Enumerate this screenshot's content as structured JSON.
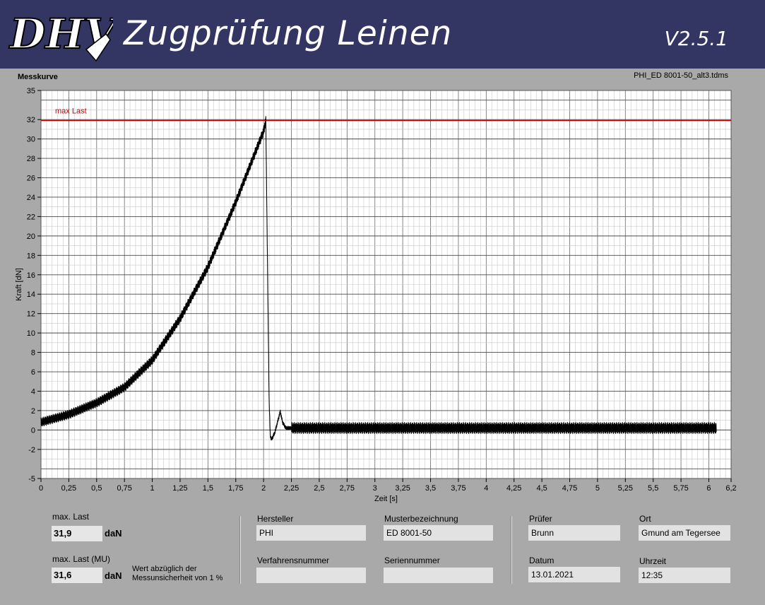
{
  "header": {
    "logo_text": "DHV",
    "title": "Zugprüfung Leinen",
    "version": "V2.5.1",
    "background": "#333562"
  },
  "chart_label": "Messkurve",
  "file_name": "PHI_ED 8001-50_alt3.tdms",
  "chart_data": {
    "type": "line",
    "xlabel": "Zeit [s]",
    "ylabel": "Kraft [dN]",
    "xlim": [
      0,
      6.2
    ],
    "ylim": [
      -5,
      35
    ],
    "x_ticks": [
      "0",
      "0,25",
      "0,5",
      "0,75",
      "1",
      "1,25",
      "1,5",
      "1,75",
      "2",
      "2,25",
      "2,5",
      "2,75",
      "3",
      "3,25",
      "3,5",
      "3,75",
      "4",
      "4,25",
      "4,5",
      "4,75",
      "5",
      "5,25",
      "5,5",
      "5,75",
      "6",
      "6,2"
    ],
    "y_ticks": [
      "-5",
      "-2",
      "0",
      "2",
      "4",
      "6",
      "8",
      "10",
      "12",
      "14",
      "16",
      "18",
      "20",
      "22",
      "24",
      "26",
      "28",
      "30",
      "32",
      "35"
    ],
    "grid": true,
    "reference_line": {
      "name": "max Last",
      "y": 31.9,
      "color": "#c00000"
    },
    "series": [
      {
        "color": "#000000",
        "x": [
          0,
          0.25,
          0.5,
          0.75,
          1.0,
          1.25,
          1.5,
          1.75,
          2.0,
          2.02,
          2.04,
          2.05,
          2.06,
          2.07,
          2.1,
          2.15,
          2.17,
          2.2,
          2.25,
          2.5,
          3,
          3.5,
          4,
          4.5,
          5,
          5.5,
          6.0,
          6.07
        ],
        "y": [
          0.8,
          1.6,
          2.8,
          4.4,
          7.2,
          11.5,
          16.8,
          23.5,
          30.8,
          31.9,
          12,
          3,
          -0.5,
          -1,
          -0.3,
          1.9,
          0.8,
          0.2,
          0.2,
          0.2,
          0.2,
          0.2,
          0.2,
          0.2,
          0.2,
          0.2,
          0.2,
          0.2
        ]
      }
    ]
  },
  "results": {
    "max_load_label": "max. Last",
    "max_load_value": "31,9",
    "max_load_unit": "daN",
    "max_load_mu_label": "max. Last (MU)",
    "max_load_mu_value": "31,6",
    "max_load_mu_unit": "daN",
    "note_line1": "Wert abzüglich der",
    "note_line2": "Messunsicherheit von 1 %"
  },
  "info": {
    "hersteller_label": "Hersteller",
    "hersteller_value": "PHI",
    "muster_label": "Musterbezeichnung",
    "muster_value": "ED 8001-50",
    "verfahren_label": "Verfahrensnummer",
    "verfahren_value": "",
    "serien_label": "Seriennummer",
    "serien_value": "",
    "pruefer_label": "Prüfer",
    "pruefer_value": "Brunn",
    "ort_label": "Ort",
    "ort_value": "Gmund am Tegersee",
    "datum_label": "Datum",
    "datum_value": "13.01.2021",
    "uhrzeit_label": "Uhrzeit",
    "uhrzeit_value": "12:35"
  }
}
